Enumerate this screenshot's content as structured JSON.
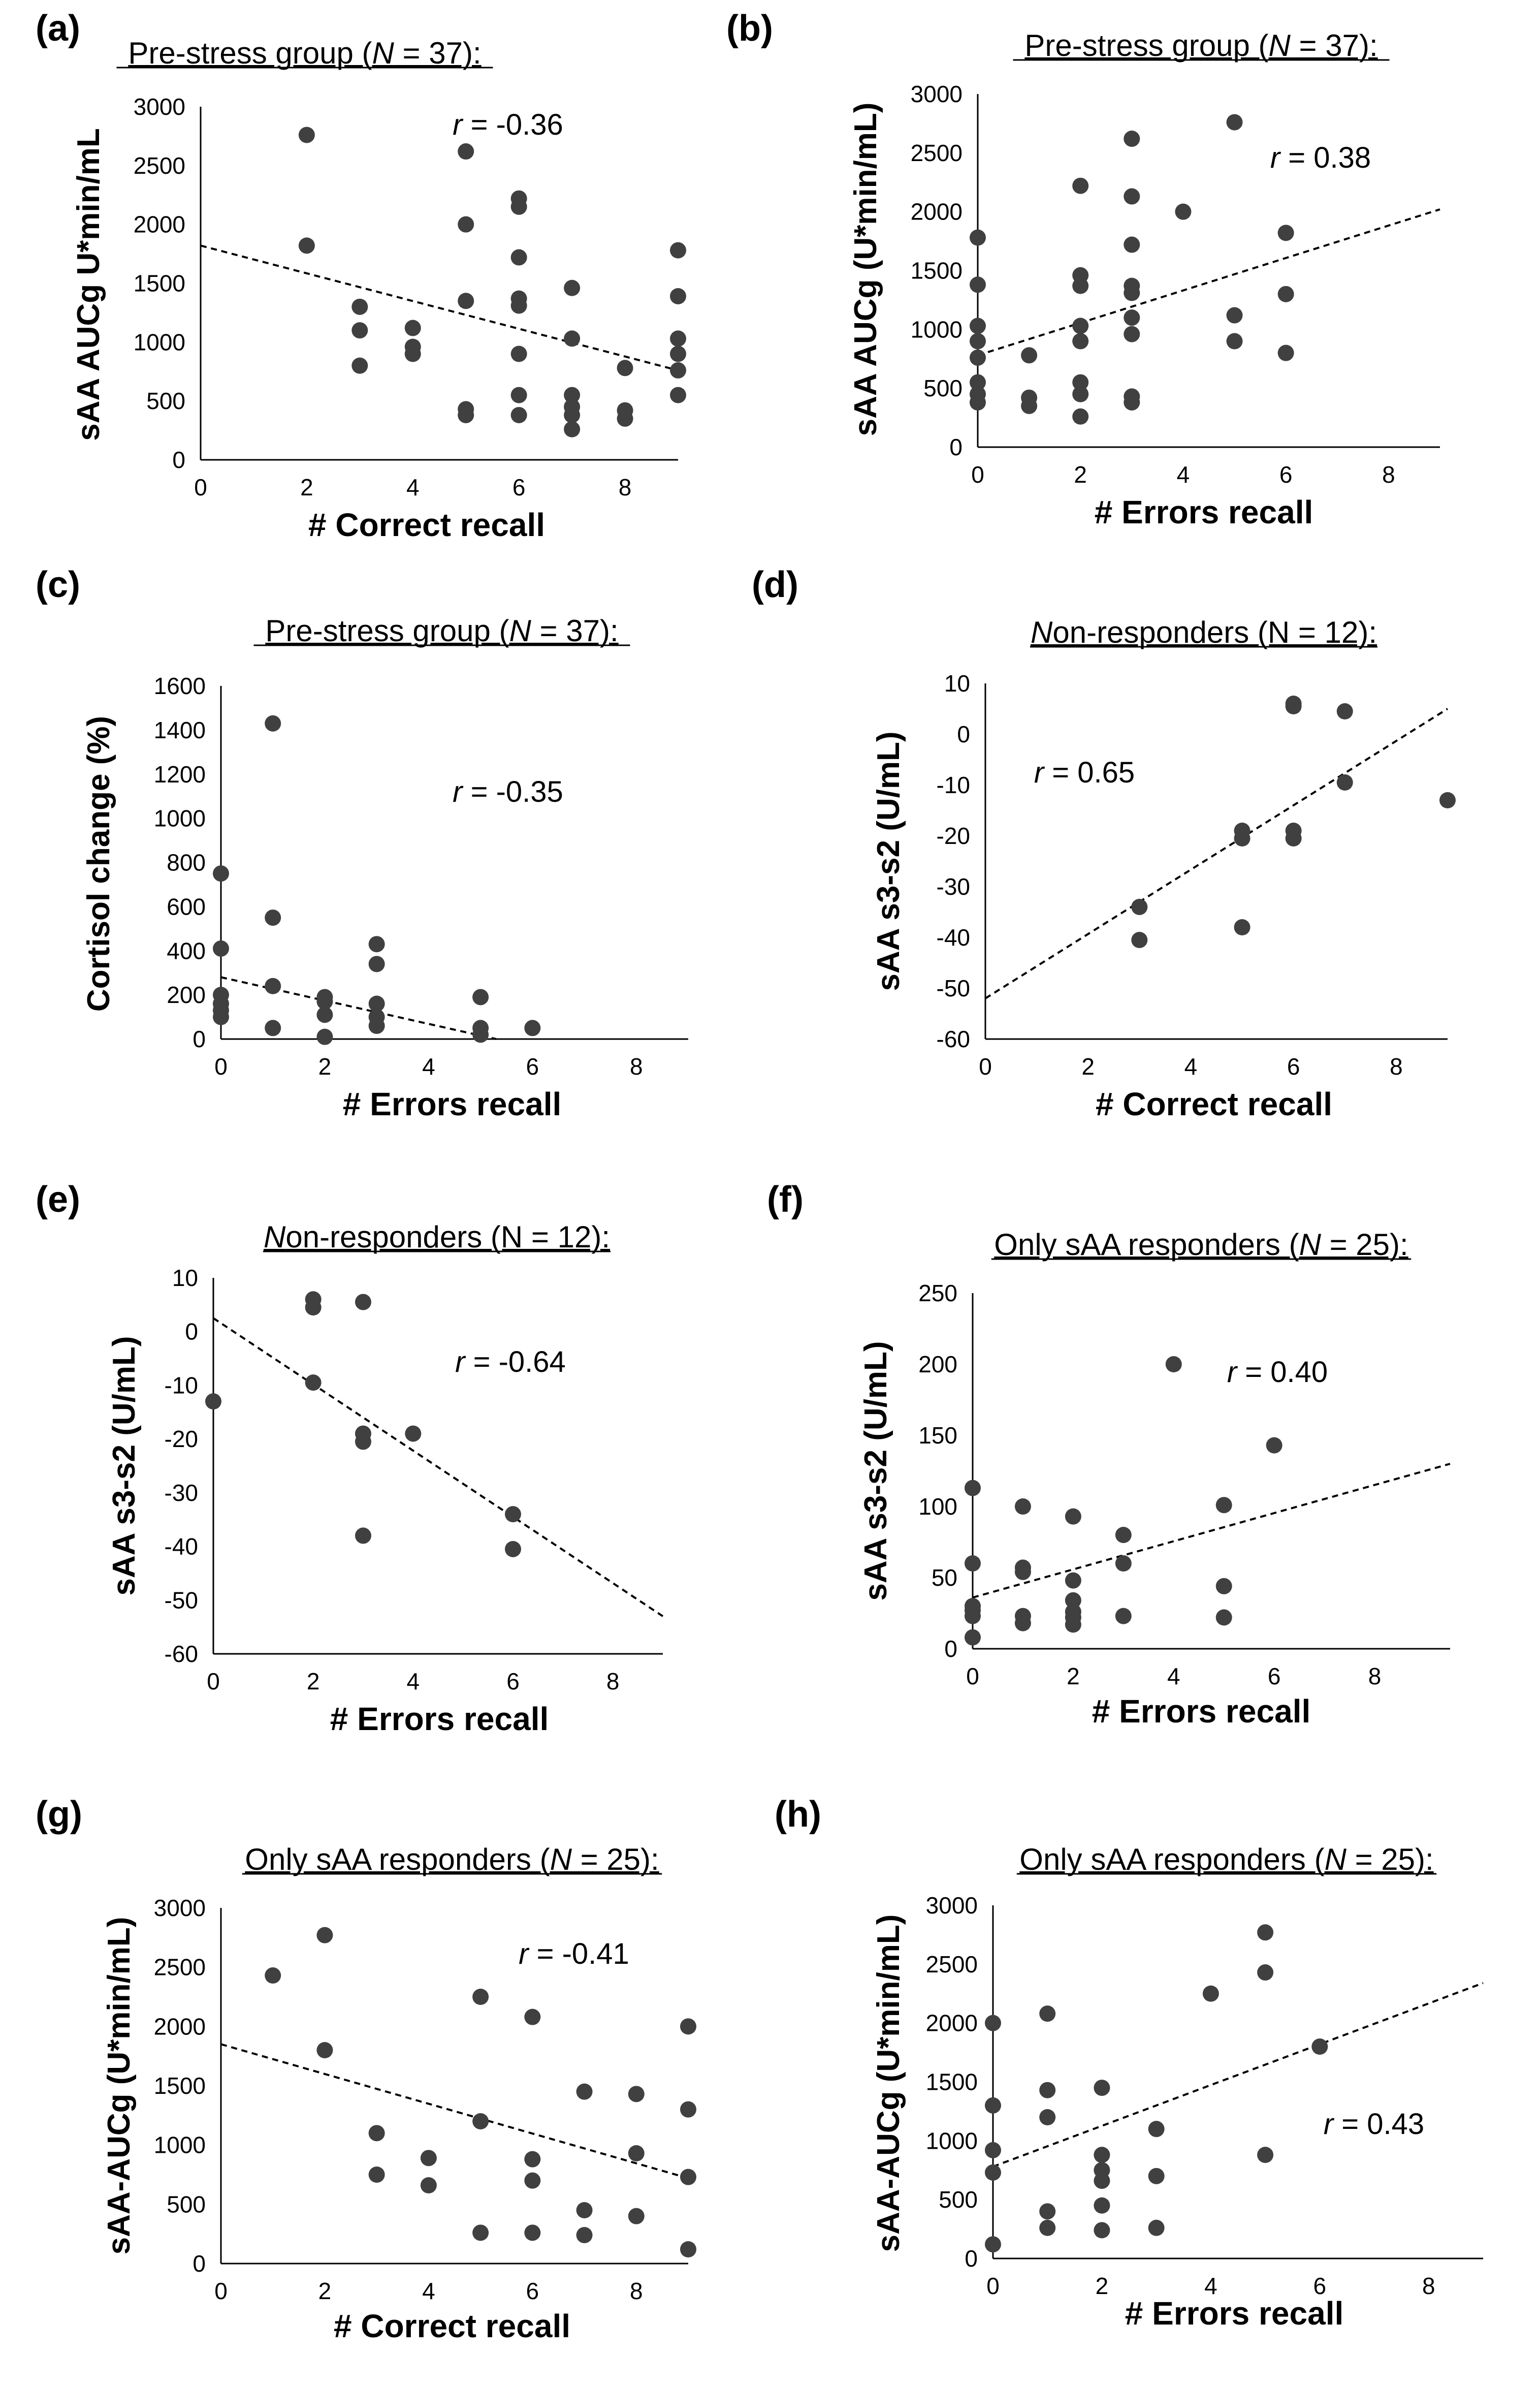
{
  "chart_data": [
    {
      "panel": "(a)",
      "type": "scatter",
      "title": "Pre-stress group (N = 37):",
      "title_italic": "N",
      "xlabel": "# Correct recall",
      "ylabel": "sAA AUCg U*min/mL",
      "xlim": [
        0,
        9
      ],
      "ylim": [
        0,
        3000
      ],
      "xticks": [
        "0",
        "2",
        "4",
        "6",
        "8"
      ],
      "yticks": [
        "0",
        "500",
        "1000",
        "1500",
        "2000",
        "2500",
        "3000"
      ],
      "r_label": "r = -0.36",
      "trend": {
        "x1": 0,
        "y1": 1820,
        "x2": 9,
        "y2": 760
      },
      "points": [
        [
          2,
          2760
        ],
        [
          2,
          1820
        ],
        [
          3,
          1300
        ],
        [
          3,
          1100
        ],
        [
          3,
          800
        ],
        [
          4,
          1120
        ],
        [
          4,
          960
        ],
        [
          4,
          900
        ],
        [
          5,
          2620
        ],
        [
          5,
          2000
        ],
        [
          5,
          1350
        ],
        [
          5,
          430
        ],
        [
          5,
          380
        ],
        [
          6,
          2220
        ],
        [
          6,
          2150
        ],
        [
          6,
          1720
        ],
        [
          6,
          1370
        ],
        [
          6,
          1310
        ],
        [
          6,
          900
        ],
        [
          6,
          550
        ],
        [
          6,
          380
        ],
        [
          7,
          1460
        ],
        [
          7,
          1030
        ],
        [
          7,
          550
        ],
        [
          7,
          450
        ],
        [
          7,
          380
        ],
        [
          7,
          260
        ],
        [
          8,
          780
        ],
        [
          8,
          420
        ],
        [
          8,
          350
        ],
        [
          9,
          1780
        ],
        [
          9,
          1390
        ],
        [
          9,
          1030
        ],
        [
          9,
          900
        ],
        [
          9,
          760
        ],
        [
          9,
          550
        ]
      ]
    },
    {
      "panel": "(b)",
      "type": "scatter",
      "title": "Pre-stress group (N = 37):",
      "title_italic": "N",
      "xlabel": "# Errors recall",
      "ylabel": "sAA AUCg (U*min/mL)",
      "xlim": [
        0,
        9
      ],
      "ylim": [
        0,
        3000
      ],
      "xticks": [
        "0",
        "2",
        "4",
        "6",
        "8"
      ],
      "yticks": [
        "0",
        "500",
        "1000",
        "1500",
        "2000",
        "2500",
        "3000"
      ],
      "r_label": "r = 0.38",
      "trend": {
        "x1": 0,
        "y1": 780,
        "x2": 9,
        "y2": 2020
      },
      "points": [
        [
          0,
          1780
        ],
        [
          0,
          1380
        ],
        [
          0,
          1030
        ],
        [
          0,
          900
        ],
        [
          0,
          760
        ],
        [
          0,
          550
        ],
        [
          0,
          450
        ],
        [
          0,
          380
        ],
        [
          1,
          780
        ],
        [
          1,
          420
        ],
        [
          1,
          350
        ],
        [
          2,
          2220
        ],
        [
          2,
          1460
        ],
        [
          2,
          1370
        ],
        [
          2,
          1030
        ],
        [
          2,
          900
        ],
        [
          2,
          550
        ],
        [
          2,
          450
        ],
        [
          2,
          260
        ],
        [
          3,
          2620
        ],
        [
          3,
          2130
        ],
        [
          3,
          1720
        ],
        [
          3,
          1370
        ],
        [
          3,
          1310
        ],
        [
          3,
          1100
        ],
        [
          3,
          960
        ],
        [
          3,
          430
        ],
        [
          3,
          380
        ],
        [
          4,
          2000
        ],
        [
          5,
          2760
        ],
        [
          5,
          1120
        ],
        [
          5,
          900
        ],
        [
          6,
          1820
        ],
        [
          6,
          1300
        ],
        [
          6,
          800
        ]
      ]
    },
    {
      "panel": "(c)",
      "type": "scatter",
      "title": "Pre-stress group (N = 37):",
      "title_italic": "N",
      "xlabel": "# Errors recall",
      "ylabel": "Cortisol change (%)",
      "xlim": [
        0,
        9
      ],
      "ylim": [
        0,
        1600
      ],
      "xticks": [
        "0",
        "2",
        "4",
        "6",
        "8"
      ],
      "yticks": [
        "0",
        "200",
        "400",
        "600",
        "800",
        "1000",
        "1200",
        "1400",
        "1600"
      ],
      "r_label": "r = -0.35",
      "trend": {
        "x1": 0,
        "y1": 280,
        "x2": 5.3,
        "y2": 0
      },
      "points": [
        [
          0,
          750
        ],
        [
          0,
          410
        ],
        [
          0,
          200
        ],
        [
          0,
          160
        ],
        [
          0,
          130
        ],
        [
          0,
          100
        ],
        [
          1,
          1430
        ],
        [
          1,
          550
        ],
        [
          1,
          240
        ],
        [
          1,
          50
        ],
        [
          2,
          190
        ],
        [
          2,
          170
        ],
        [
          2,
          110
        ],
        [
          2,
          10
        ],
        [
          3,
          430
        ],
        [
          3,
          340
        ],
        [
          3,
          160
        ],
        [
          3,
          100
        ],
        [
          3,
          60
        ],
        [
          5,
          190
        ],
        [
          5,
          50
        ],
        [
          5,
          20
        ],
        [
          6,
          50
        ]
      ]
    },
    {
      "panel": "(d)",
      "type": "scatter",
      "title": "Non-responders (N = 12):",
      "title_italic": "N",
      "xlabel": "# Correct recall",
      "ylabel": "sAA s3-s2 (U/mL)",
      "xlim": [
        0,
        9
      ],
      "ylim": [
        -60,
        10
      ],
      "xticks": [
        "0",
        "2",
        "4",
        "6",
        "8"
      ],
      "yticks": [
        "-60",
        "-50",
        "-40",
        "-30",
        "-20",
        "-10",
        "0",
        "10"
      ],
      "r_label": "r = 0.65",
      "trend": {
        "x1": 0,
        "y1": -52,
        "x2": 9,
        "y2": 5
      },
      "points": [
        [
          3,
          -34
        ],
        [
          3,
          -40.5
        ],
        [
          5,
          -19
        ],
        [
          5,
          -20.5
        ],
        [
          5,
          -38
        ],
        [
          6,
          6
        ],
        [
          6,
          5.5
        ],
        [
          6,
          -19
        ],
        [
          6,
          -20.5
        ],
        [
          7,
          4.5
        ],
        [
          7,
          -9.5
        ],
        [
          9,
          -13
        ]
      ]
    },
    {
      "panel": "(e)",
      "type": "scatter",
      "title": "Non-responders (N = 12):",
      "title_italic": "N",
      "xlabel": "# Errors recall",
      "ylabel": "sAA s3-s2 (U/mL)",
      "xlim": [
        0,
        9
      ],
      "ylim": [
        -60,
        10
      ],
      "xticks": [
        "0",
        "2",
        "4",
        "6",
        "8"
      ],
      "yticks": [
        "-60",
        "-50",
        "-40",
        "-30",
        "-20",
        "-10",
        "0",
        "10"
      ],
      "r_label": "r = -0.64",
      "trend": {
        "x1": 0,
        "y1": 2.5,
        "x2": 9,
        "y2": -53
      },
      "points": [
        [
          0,
          -13
        ],
        [
          2,
          6
        ],
        [
          2,
          4.5
        ],
        [
          2,
          -9.5
        ],
        [
          3,
          5.5
        ],
        [
          3,
          -19
        ],
        [
          3,
          -20.5
        ],
        [
          3,
          -38
        ],
        [
          4,
          -19
        ],
        [
          6,
          -34
        ],
        [
          6,
          -40.5
        ]
      ]
    },
    {
      "panel": "(f)",
      "type": "scatter",
      "title": "Only sAA responders (N = 25):",
      "title_italic": "N",
      "xlabel": "# Errors recall",
      "ylabel": "sAA s3-s2 (U/mL)",
      "xlim": [
        0,
        9.5
      ],
      "ylim": [
        0,
        250
      ],
      "xticks": [
        "0",
        "2",
        "4",
        "6",
        "8"
      ],
      "yticks": [
        "0",
        "50",
        "100",
        "150",
        "200",
        "250"
      ],
      "r_label": "r = 0.40",
      "trend": {
        "x1": 0,
        "y1": 36,
        "x2": 9.5,
        "y2": 130
      },
      "points": [
        [
          0,
          113
        ],
        [
          0,
          60
        ],
        [
          0,
          30
        ],
        [
          0,
          27
        ],
        [
          0,
          23
        ],
        [
          0,
          8
        ],
        [
          1,
          100
        ],
        [
          1,
          57
        ],
        [
          1,
          54
        ],
        [
          1,
          23
        ],
        [
          1,
          18
        ],
        [
          2,
          93
        ],
        [
          2,
          48
        ],
        [
          2,
          34
        ],
        [
          2,
          26
        ],
        [
          2,
          22
        ],
        [
          2,
          17
        ],
        [
          3,
          80
        ],
        [
          3,
          60
        ],
        [
          3,
          23
        ],
        [
          4,
          200
        ],
        [
          5,
          101
        ],
        [
          5,
          44
        ],
        [
          5,
          22
        ],
        [
          6,
          143
        ]
      ]
    },
    {
      "panel": "(g)",
      "type": "scatter",
      "title": "Only sAA responders (N = 25):",
      "title_italic": "N",
      "xlabel": "# Correct recall",
      "ylabel": "sAA-AUCg (U*min/mL)",
      "xlim": [
        0,
        9
      ],
      "ylim": [
        0,
        3000
      ],
      "xticks": [
        "0",
        "2",
        "4",
        "6",
        "8"
      ],
      "yticks": [
        "0",
        "500",
        "1000",
        "1500",
        "2000",
        "2500",
        "3000"
      ],
      "r_label": "r = -0.41",
      "trend": {
        "x1": 0,
        "y1": 1850,
        "x2": 9,
        "y2": 720
      },
      "points": [
        [
          1,
          2430
        ],
        [
          2,
          2770
        ],
        [
          2,
          1800
        ],
        [
          3,
          1100
        ],
        [
          3,
          750
        ],
        [
          4,
          890
        ],
        [
          4,
          660
        ],
        [
          5,
          2250
        ],
        [
          5,
          1200
        ],
        [
          5,
          260
        ],
        [
          6,
          2080
        ],
        [
          6,
          880
        ],
        [
          6,
          700
        ],
        [
          6,
          260
        ],
        [
          7,
          1450
        ],
        [
          7,
          450
        ],
        [
          7,
          240
        ],
        [
          8,
          1430
        ],
        [
          8,
          930
        ],
        [
          8,
          400
        ],
        [
          9,
          2000
        ],
        [
          9,
          1300
        ],
        [
          9,
          730
        ],
        [
          9,
          120
        ]
      ]
    },
    {
      "panel": "(h)",
      "type": "scatter",
      "title": "Only sAA responders (N = 25):",
      "title_italic": "N",
      "xlabel": "# Errors recall",
      "ylabel": "sAA-AUCg (U*min/mL)",
      "xlim": [
        0,
        9
      ],
      "ylim": [
        0,
        3000
      ],
      "xticks": [
        "0",
        "2",
        "4",
        "6",
        "8"
      ],
      "yticks": [
        "0",
        "500",
        "1000",
        "1500",
        "2000",
        "2500",
        "3000"
      ],
      "r_label": "r = 0.43",
      "trend": {
        "x1": 0,
        "y1": 780,
        "x2": 9,
        "y2": 2340
      },
      "points": [
        [
          0,
          2000
        ],
        [
          0,
          1300
        ],
        [
          0,
          920
        ],
        [
          0,
          730
        ],
        [
          0,
          120
        ],
        [
          1,
          2080
        ],
        [
          1,
          1430
        ],
        [
          1,
          1200
        ],
        [
          1,
          400
        ],
        [
          1,
          260
        ],
        [
          2,
          1450
        ],
        [
          2,
          880
        ],
        [
          2,
          750
        ],
        [
          2,
          660
        ],
        [
          2,
          450
        ],
        [
          2,
          240
        ],
        [
          3,
          1100
        ],
        [
          3,
          700
        ],
        [
          3,
          260
        ],
        [
          4,
          2250
        ],
        [
          5,
          2770
        ],
        [
          5,
          2430
        ],
        [
          5,
          880
        ],
        [
          6,
          1800
        ]
      ]
    }
  ]
}
